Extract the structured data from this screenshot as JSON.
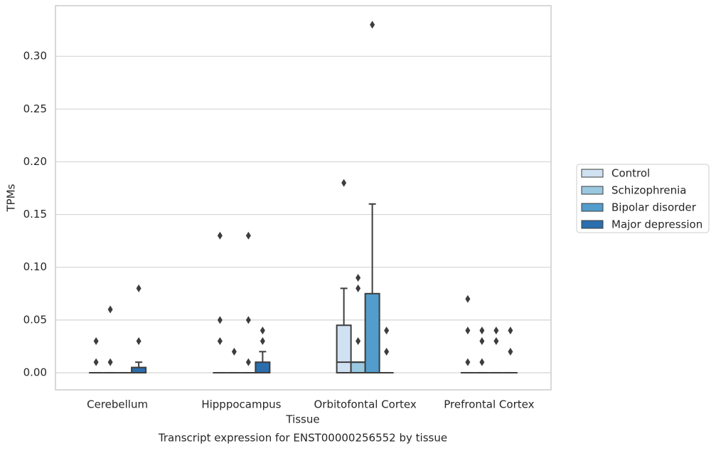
{
  "chart_data": {
    "type": "boxplot",
    "caption": "Transcript expression for ENST00000256552 by tissue",
    "x_label": "Tissue",
    "y_label": "TPMs",
    "categories": [
      "Cerebellum",
      "Hipppocampus",
      "Orbitofontal Cortex",
      "Prefrontal Cortex"
    ],
    "ylim": [
      -0.0162,
      0.348
    ],
    "yticks": [
      {
        "value": 0,
        "label": "0.00"
      },
      {
        "value": 0.05,
        "label": "0.05"
      },
      {
        "value": 0.1,
        "label": "0.10"
      },
      {
        "value": 0.15,
        "label": "0.15"
      },
      {
        "value": 0.2,
        "label": "0.20"
      },
      {
        "value": 0.25,
        "label": "0.25"
      },
      {
        "value": 0.3,
        "label": "0.30"
      }
    ],
    "grid": true,
    "legend": "right",
    "series": [
      {
        "name": "Control",
        "color": "#d0e1f2",
        "boxes": [
          {
            "min": 0,
            "q1": 0,
            "median": 0,
            "q3": 0,
            "max": 0,
            "outliers": [
              0.03,
              0.01
            ]
          },
          {
            "min": 0,
            "q1": 0,
            "median": 0,
            "q3": 0,
            "max": 0,
            "outliers": [
              0.13,
              0.05,
              0.03
            ]
          },
          {
            "min": 0,
            "q1": 0,
            "median": 0.01,
            "q3": 0.045,
            "max": 0.08,
            "outliers": [
              0.18
            ]
          },
          {
            "min": 0,
            "q1": 0,
            "median": 0,
            "q3": 0,
            "max": 0,
            "outliers": [
              0.07,
              0.04,
              0.01
            ]
          }
        ]
      },
      {
        "name": "Schizophrenia",
        "color": "#9ac8e0",
        "boxes": [
          {
            "min": 0,
            "q1": 0,
            "median": 0,
            "q3": 0,
            "max": 0,
            "outliers": [
              0.06,
              0.01
            ]
          },
          {
            "min": 0,
            "q1": 0,
            "median": 0,
            "q3": 0,
            "max": 0,
            "outliers": [
              0.02
            ]
          },
          {
            "min": 0,
            "q1": 0,
            "median": 0.01,
            "q3": 0.01,
            "max": 0.01,
            "outliers": [
              0.09,
              0.08,
              0.03
            ]
          },
          {
            "min": 0,
            "q1": 0,
            "median": 0,
            "q3": 0,
            "max": 0,
            "outliers": [
              0.04,
              0.03,
              0.01
            ]
          }
        ]
      },
      {
        "name": "Bipolar disorder",
        "color": "#529dcc",
        "boxes": [
          {
            "min": 0,
            "q1": 0,
            "median": 0,
            "q3": 0,
            "max": 0,
            "outliers": []
          },
          {
            "min": 0,
            "q1": 0,
            "median": 0,
            "q3": 0,
            "max": 0,
            "outliers": [
              0.13,
              0.05,
              0.01
            ]
          },
          {
            "min": 0,
            "q1": 0,
            "median": 0,
            "q3": 0.075,
            "max": 0.16,
            "outliers": [
              0.33
            ]
          },
          {
            "min": 0,
            "q1": 0,
            "median": 0,
            "q3": 0,
            "max": 0,
            "outliers": [
              0.04,
              0.03
            ]
          }
        ]
      },
      {
        "name": "Major depression",
        "color": "#2a6ead",
        "boxes": [
          {
            "min": 0,
            "q1": 0,
            "median": 0,
            "q3": 0.005,
            "max": 0.01,
            "outliers": [
              0.03,
              0.08
            ]
          },
          {
            "min": 0,
            "q1": 0,
            "median": 0,
            "q3": 0.01,
            "max": 0.02,
            "outliers": [
              0.04,
              0.03
            ]
          },
          {
            "min": 0,
            "q1": 0,
            "median": 0,
            "q3": 0,
            "max": 0,
            "outliers": [
              0.04,
              0.02
            ]
          },
          {
            "min": 0,
            "q1": 0,
            "median": 0,
            "q3": 0,
            "max": 0,
            "outliers": [
              0.04,
              0.02
            ]
          }
        ]
      }
    ]
  }
}
